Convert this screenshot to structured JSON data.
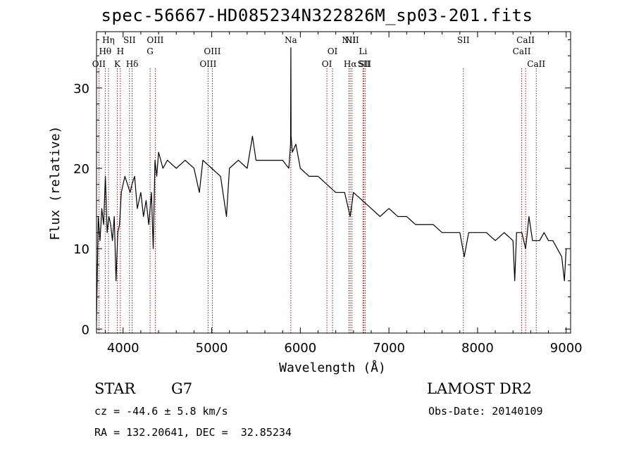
{
  "chart_data": {
    "type": "line",
    "title": "spec-56667-HD085234N322826M_sp03-201.fits",
    "xlabel": "Wavelength (Å)",
    "ylabel": "Flux (relative)",
    "xlim": [
      3700,
      9050
    ],
    "ylim": [
      -0.5,
      37
    ],
    "xticks": [
      4000,
      5000,
      6000,
      7000,
      8000,
      9000
    ],
    "yticks": [
      0,
      10,
      20,
      30
    ],
    "grid": false,
    "series": [
      {
        "x": [
          3700,
          3720,
          3740,
          3760,
          3780,
          3800,
          3820,
          3840,
          3860,
          3880,
          3900,
          3920,
          3940,
          3960,
          3980,
          4000,
          4020,
          4050,
          4080,
          4100,
          4130,
          4160,
          4200,
          4230,
          4260,
          4290,
          4320,
          4340,
          4360,
          4380,
          4400,
          4450,
          4500,
          4600,
          4700,
          4800,
          4861,
          4900,
          5000,
          5100,
          5167,
          5200,
          5300,
          5400,
          5460,
          5500,
          5600,
          5700,
          5800,
          5870,
          5890,
          5893,
          5896,
          5910,
          5950,
          6000,
          6100,
          6200,
          6300,
          6400,
          6500,
          6563,
          6600,
          6700,
          6800,
          6900,
          7000,
          7100,
          7200,
          7300,
          7400,
          7500,
          7600,
          7700,
          7800,
          7850,
          7900,
          8000,
          8100,
          8200,
          8300,
          8400,
          8420,
          8440,
          8500,
          8542,
          8580,
          8620,
          8662,
          8700,
          8750,
          8800,
          8850,
          8900,
          8950,
          8980,
          9000
        ],
        "y": [
          1,
          14,
          11,
          15,
          13,
          19,
          12,
          14,
          13,
          11,
          14,
          6,
          12,
          13,
          17,
          18,
          19,
          18,
          17,
          18,
          19,
          15,
          17,
          14,
          16,
          13,
          17,
          10,
          21,
          19,
          22,
          20,
          21,
          20,
          21,
          20,
          17,
          21,
          20,
          19,
          14,
          20,
          21,
          20,
          24,
          21,
          21,
          21,
          21,
          20,
          23,
          35,
          24,
          22,
          23,
          20,
          19,
          19,
          18,
          17,
          17,
          14,
          17,
          16,
          15,
          14,
          15,
          14,
          14,
          13,
          13,
          13,
          12,
          12,
          12,
          9,
          12,
          12,
          12,
          11,
          12,
          11,
          6,
          12,
          12,
          10,
          14,
          11,
          11,
          11,
          12,
          11,
          11,
          10,
          9,
          6,
          10
        ]
      }
    ],
    "line_markers": [
      {
        "label": "OII",
        "x": 3727,
        "row": 3
      },
      {
        "label": "Hθ",
        "x": 3798,
        "row": 2
      },
      {
        "label": "Hη",
        "x": 3835,
        "row": 1
      },
      {
        "label": "K",
        "x": 3934,
        "row": 3
      },
      {
        "label": "H",
        "x": 3969,
        "row": 2
      },
      {
        "label": "SII",
        "x": 4072,
        "row": 1
      },
      {
        "label": "Hδ",
        "x": 4102,
        "row": 3
      },
      {
        "label": "G",
        "x": 4305,
        "row": 2
      },
      {
        "label": "OIII",
        "x": 4363,
        "row": 1
      },
      {
        "label": "OIII",
        "x": 4959,
        "row": 3
      },
      {
        "label": "OIII",
        "x": 5007,
        "row": 2
      },
      {
        "label": "Na",
        "x": 5893,
        "row": 1
      },
      {
        "label": "OI",
        "x": 6300,
        "row": 3
      },
      {
        "label": "OI",
        "x": 6363,
        "row": 2
      },
      {
        "label": "NII",
        "x": 6548,
        "row": 1
      },
      {
        "label": "Hα",
        "x": 6563,
        "row": 3
      },
      {
        "label": "NII",
        "x": 6583,
        "row": 1
      },
      {
        "label": "Li",
        "x": 6707,
        "row": 2
      },
      {
        "label": "SII",
        "x": 6716,
        "row": 3
      },
      {
        "label": "SII",
        "x": 6731,
        "row": 3
      },
      {
        "label": "SII",
        "x": 7840,
        "row": 1
      },
      {
        "label": "CaII",
        "x": 8498,
        "row": 2
      },
      {
        "label": "CaII",
        "x": 8542,
        "row": 1
      },
      {
        "label": "CaII",
        "x": 8662,
        "row": 3
      }
    ]
  },
  "info": {
    "object_class": "STAR",
    "subclass": "G7",
    "survey": "LAMOST DR2",
    "redshift_text": "cz = -44.6 ± 5.8 km/s",
    "obs_date": "Obs-Date: 20140109",
    "coords": "RA = 132.20641, DEC =  32.85234"
  },
  "colors": {
    "spectrum": "#000000",
    "marker_line": "#8b1a1a",
    "axis": "#000000"
  }
}
